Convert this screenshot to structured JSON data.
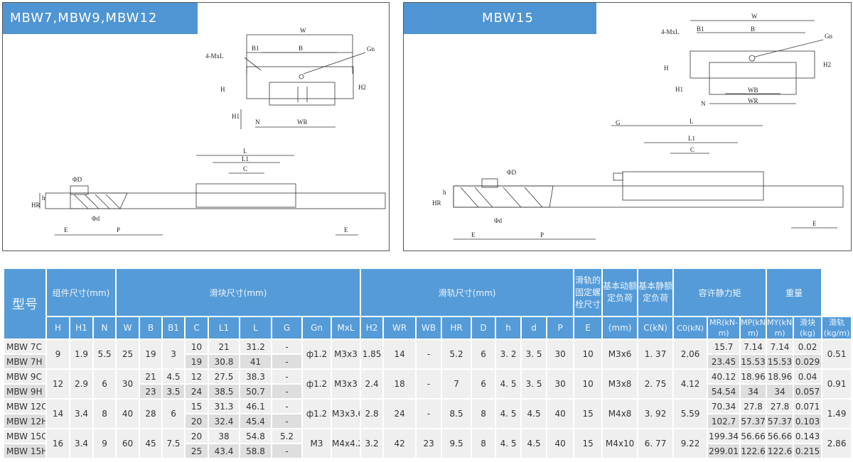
{
  "panels": {
    "left": {
      "title": "MBW7,MBW9,MBW12",
      "labels": {
        "W": "W",
        "B1": "B1",
        "B": "B",
        "MxL": "4-MxL",
        "Gn": "Gn",
        "H": "H",
        "H2": "H2",
        "H1": "H1",
        "N": "N",
        "WR": "WR",
        "L": "L",
        "L1": "L1",
        "C": "C",
        "D": "ΦD",
        "h": "h",
        "HR": "HR",
        "d": "Φd",
        "E": "E",
        "P": "P"
      }
    },
    "right": {
      "title": "MBW15",
      "labels": {
        "W": "W",
        "B1": "B1",
        "B": "B",
        "MxL": "4-MxL",
        "Gn": "Gn",
        "H": "H",
        "H2": "H2",
        "H1": "H1",
        "N": "N",
        "WB": "WB",
        "WR": "WR",
        "L": "L",
        "L1": "L1",
        "C": "C",
        "G": "G",
        "D": "ΦD",
        "h": "h",
        "HR": "HR",
        "d": "Φd",
        "E": "E",
        "P": "P"
      }
    }
  },
  "table": {
    "model_header": "型号",
    "groups": {
      "assembly": "组件尺寸(mm)",
      "block": "滑块尺寸(mm)",
      "rail": "滑轨尺寸(mm)",
      "bolt": "滑轨的固定螺栓尺寸",
      "dynamic": "基本动额定负荷",
      "static": "基本静额定负荷",
      "moment": "容许静力矩",
      "weight": "重量"
    },
    "columns": [
      "H",
      "H1",
      "N",
      "W",
      "B",
      "B1",
      "C",
      "L1",
      "L",
      "G",
      "Gn",
      "MxL",
      "H2",
      "WR",
      "WB",
      "HR",
      "D",
      "h",
      "d",
      "P",
      "E",
      "(mm)",
      "C(kN)",
      "C0(kN)",
      "MR(kN-m)",
      "MP(kN-m)",
      "MY(kN-m)",
      "滑块(kg)",
      "滑轨(kg/m)"
    ],
    "groups_rows": [
      {
        "models": [
          "MBW 7C",
          "MBW 7H"
        ],
        "H": "9",
        "H1": "1.9",
        "N": "5.5",
        "W": "25",
        "B": [
          "19",
          "19"
        ],
        "B1": [
          "3",
          "3"
        ],
        "C": [
          "10",
          "19"
        ],
        "L1": [
          "21",
          "30.8"
        ],
        "L": [
          "31.2",
          "41"
        ],
        "G": [
          "-",
          "-"
        ],
        "Gn": "ф1.2",
        "MxL": "M3x3",
        "H2": "1.85",
        "WR": "14",
        "WB": "-",
        "HR": "5.2",
        "D": "6",
        "h": "3. 2",
        "d": "3. 5",
        "P": "30",
        "E": "10",
        "bolt": "M3x6",
        "Ckn": "1. 37",
        "C0": "2.06",
        "MR": [
          "15.7",
          "23.45"
        ],
        "MP": [
          "7.14",
          "15.53"
        ],
        "MY": [
          "7.14",
          "15.53"
        ],
        "block_kg": [
          "0.02",
          "0.029"
        ],
        "rail_kg": "0.51"
      },
      {
        "models": [
          "MBW 9C",
          "MBW 9H"
        ],
        "H": "12",
        "H1": "2.9",
        "N": "6",
        "W": "30",
        "B": [
          "21",
          "23"
        ],
        "B1": [
          "4.5",
          "3.5"
        ],
        "C": [
          "12",
          "24"
        ],
        "L1": [
          "27.5",
          "38.5"
        ],
        "L": [
          "38.3",
          "50.7"
        ],
        "G": [
          "-",
          "-"
        ],
        "Gn": "ф1.2",
        "MxL": "M3x3",
        "H2": "2.4",
        "WR": "18",
        "WB": "-",
        "HR": "7",
        "D": "6",
        "h": "4. 5",
        "d": "3. 5",
        "P": "30",
        "E": "10",
        "bolt": "M3x8",
        "Ckn": "2. 75",
        "C0": "4.12",
        "MR": [
          "40.12",
          "54.54"
        ],
        "MP": [
          "18.96",
          "34"
        ],
        "MY": [
          "18.96",
          "34"
        ],
        "block_kg": [
          "0.04",
          "0.057"
        ],
        "rail_kg": "0.91"
      },
      {
        "models": [
          "MBW 12C",
          "MBW 12H"
        ],
        "H": "14",
        "H1": "3.4",
        "N": "8",
        "W": "40",
        "B": [
          "28",
          "28"
        ],
        "B1": [
          "6",
          "6"
        ],
        "C": [
          "15",
          "20"
        ],
        "L1": [
          "31.3",
          "32.4"
        ],
        "L": [
          "46.1",
          "45.4"
        ],
        "G": [
          "-",
          "-"
        ],
        "Gn": "ф1.2",
        "MxL": "M3x3.6",
        "H2": "2.8",
        "WR": "24",
        "WB": "-",
        "HR": "8.5",
        "D": "8",
        "h": "4. 5",
        "d": "4.5",
        "P": "40",
        "E": "15",
        "bolt": "M4x8",
        "Ckn": "3. 92",
        "C0": "5.59",
        "MR": [
          "70.34",
          "102.7"
        ],
        "MP": [
          "27.8",
          "57.37"
        ],
        "MY": [
          "27.8",
          "57.37"
        ],
        "block_kg": [
          "0.071",
          "0.103"
        ],
        "rail_kg": "1.49"
      },
      {
        "models": [
          "MBW 15C",
          "MBW 15H"
        ],
        "H": "16",
        "H1": "3.4",
        "N": "9",
        "W": "60",
        "B": [
          "45",
          "45"
        ],
        "B1": [
          "7.5",
          "7.5"
        ],
        "C": [
          "20",
          "25"
        ],
        "L1": [
          "38",
          "43.4"
        ],
        "L": [
          "54.8",
          "58.8"
        ],
        "G": [
          "5.2",
          "-"
        ],
        "Gn": "M3",
        "MxL": "M4x4.2",
        "H2": "3.2",
        "WR": "42",
        "WB": "23",
        "HR": "9.5",
        "D": "8",
        "h": "4. 5",
        "d": "4.5",
        "P": "40",
        "E": "15",
        "bolt": "M4x10",
        "Ckn": "6. 77",
        "C0": "9.22",
        "MR": [
          "199.34",
          "299.01"
        ],
        "MP": [
          "56.66",
          "122.6"
        ],
        "MY": [
          "56.66",
          "122.6"
        ],
        "block_kg": [
          "0.143",
          "0.215"
        ],
        "rail_kg": "2.86"
      }
    ]
  }
}
